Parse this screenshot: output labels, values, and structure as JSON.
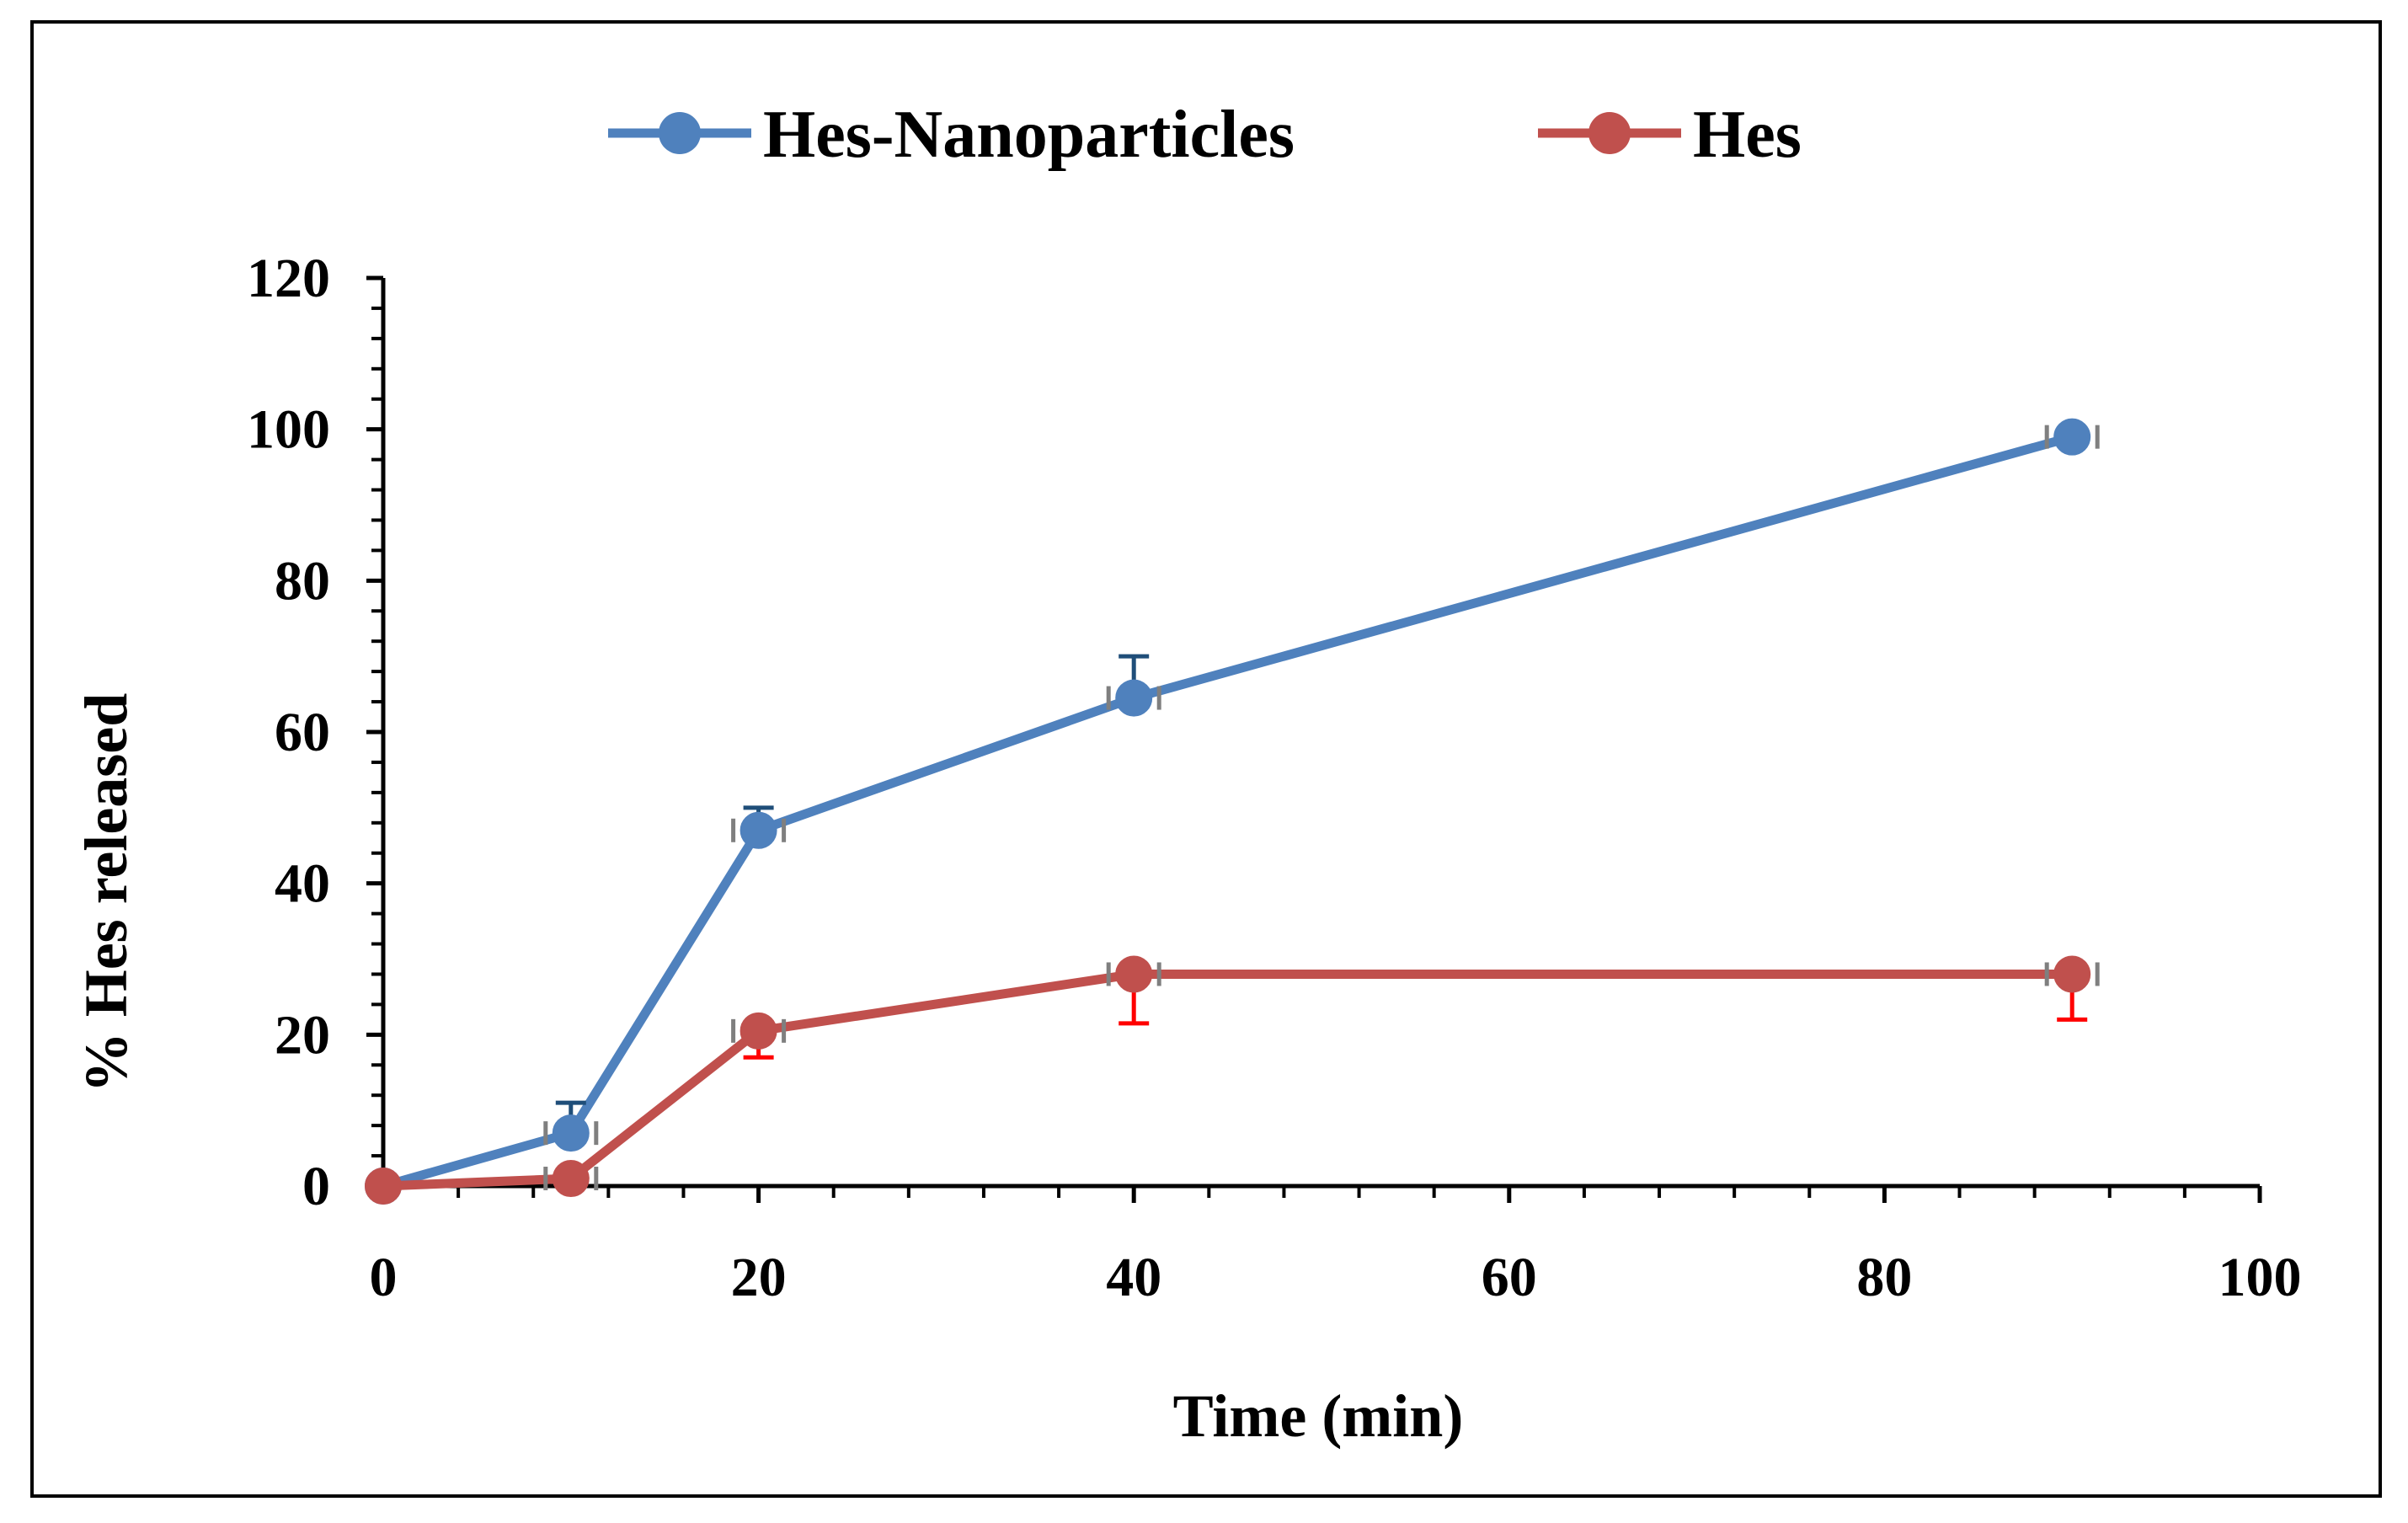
{
  "chart_data": {
    "type": "line",
    "title": "",
    "xlabel": "Time (min)",
    "ylabel": "% Hes released",
    "xlim": [
      0,
      100
    ],
    "ylim": [
      0,
      120
    ],
    "x_ticks": [
      0,
      20,
      40,
      60,
      80,
      100
    ],
    "y_ticks": [
      0,
      20,
      40,
      60,
      80,
      100,
      120
    ],
    "x_tick_labels": [
      "0",
      "20",
      "40",
      "60",
      "80",
      "100"
    ],
    "y_tick_labels": [
      "0",
      "20",
      "40",
      "60",
      "80",
      "100",
      "120"
    ],
    "grid": false,
    "legend_position": "top-center",
    "series": [
      {
        "name": "Hes-Nanoparticles",
        "color": "#4f81bd",
        "error_color": "#1f4e79",
        "x": [
          0,
          10,
          20,
          40,
          90
        ],
        "values": [
          0,
          7,
          47,
          64.5,
          99
        ],
        "error_plus": [
          0,
          4,
          3,
          5.5,
          0.5
        ],
        "error_minus": [
          0,
          0,
          0,
          0,
          0
        ]
      },
      {
        "name": "Hes",
        "color": "#c0504d",
        "error_color": "#ff0000",
        "x": [
          0,
          10,
          20,
          40,
          90
        ],
        "values": [
          0,
          1,
          20.5,
          28,
          28
        ],
        "error_plus": [
          0,
          0,
          0,
          0,
          0
        ],
        "error_minus": [
          0,
          0,
          3.5,
          6.5,
          6
        ]
      }
    ]
  }
}
